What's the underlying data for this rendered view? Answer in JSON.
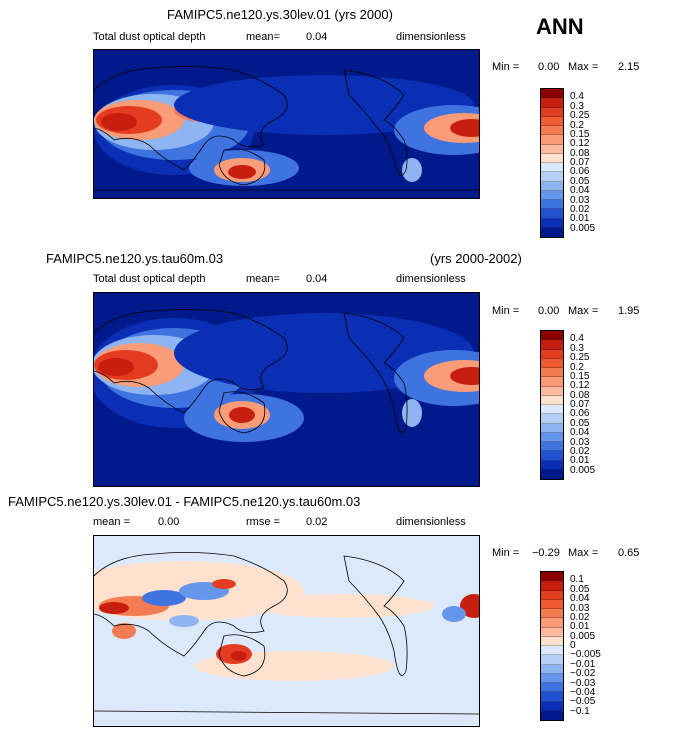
{
  "season": "ANN",
  "panels": [
    {
      "case_title": "FAMIPC5.ne120.ys.30lev.01 (yrs 2000)",
      "variable": "Total dust optical depth",
      "stat_label": "mean=",
      "stat_value": "0.04",
      "units": "dimensionless",
      "min_label": "Min =",
      "min_value": "0.00",
      "max_label": "Max =",
      "max_value": "2.15",
      "colorbar": {
        "labels": [
          "0.4",
          "0.3",
          "0.25",
          "0.2",
          "0.15",
          "0.12",
          "0.08",
          "0.07",
          "0.06",
          "0.05",
          "0.04",
          "0.03",
          "0.02",
          "0.01",
          "0.005"
        ],
        "colors": [
          "#8b0000",
          "#c81e10",
          "#e33c20",
          "#f05a33",
          "#f57b52",
          "#f99c77",
          "#fbbb9e",
          "#fde0cd",
          "#dce9fb",
          "#b5d0f7",
          "#8eb5f2",
          "#6496ec",
          "#3f74e0",
          "#2251cf",
          "#0a2fb5",
          "#001a8c"
        ]
      }
    },
    {
      "case_title": "FAMIPC5.ne120.ys.tau60m.03",
      "years": "(yrs 2000-2002)",
      "variable": "Total dust optical depth",
      "stat_label": "mean=",
      "stat_value": "0.04",
      "units": "dimensionless",
      "min_label": "Min =",
      "min_value": "0.00",
      "max_label": "Max =",
      "max_value": "1.95",
      "colorbar": {
        "labels": [
          "0.4",
          "0.3",
          "0.25",
          "0.2",
          "0.15",
          "0.12",
          "0.08",
          "0.07",
          "0.06",
          "0.05",
          "0.04",
          "0.03",
          "0.02",
          "0.01",
          "0.005"
        ],
        "colors": [
          "#8b0000",
          "#c81e10",
          "#e33c20",
          "#f05a33",
          "#f57b52",
          "#f99c77",
          "#fbbb9e",
          "#fde0cd",
          "#dce9fb",
          "#b5d0f7",
          "#8eb5f2",
          "#6496ec",
          "#3f74e0",
          "#2251cf",
          "#0a2fb5",
          "#001a8c"
        ]
      }
    },
    {
      "case_title": "FAMIPC5.ne120.ys.30lev.01 - FAMIPC5.ne120.ys.tau60m.03",
      "mean_label": "mean =",
      "mean_value": "0.00",
      "rmse_label": "rmse =",
      "rmse_value": "0.02",
      "units": "dimensionless",
      "min_label": "Min =",
      "min_value": "−0.29",
      "max_label": "Max =",
      "max_value": "0.65",
      "colorbar": {
        "labels": [
          "0.1",
          "0.05",
          "0.04",
          "0.03",
          "0.02",
          "0.01",
          "0.005",
          "0",
          "−0.005",
          "−0.01",
          "−0.02",
          "−0.03",
          "−0.04",
          "−0.05",
          "−0.1"
        ],
        "colors": [
          "#8b0000",
          "#c81e10",
          "#e33c20",
          "#f05a33",
          "#f57b52",
          "#f99c77",
          "#fbbb9e",
          "#fde0cd",
          "#dce9fb",
          "#b5d0f7",
          "#8eb5f2",
          "#6496ec",
          "#3f74e0",
          "#2251cf",
          "#0a2fb5",
          "#001a8c"
        ]
      }
    }
  ]
}
